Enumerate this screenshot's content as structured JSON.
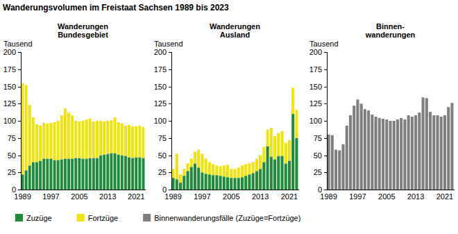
{
  "title": "Wanderungsvolumen im Freistaat Sachsen 1989 bis 2023",
  "chart_data": [
    {
      "type": "bar",
      "title": "Wanderungen\nBundesgebiet",
      "ylabel": "Tausend",
      "stacked": true,
      "grid": false,
      "legend": "bottom",
      "categories": [
        "1989",
        null,
        null,
        null,
        null,
        null,
        null,
        null,
        "1997",
        null,
        null,
        null,
        null,
        null,
        null,
        null,
        "2005",
        null,
        null,
        null,
        null,
        null,
        null,
        null,
        "2013",
        null,
        null,
        null,
        null,
        null,
        null,
        null,
        "2021",
        null,
        null
      ],
      "ylim": [
        0,
        200
      ],
      "yticks": [
        0,
        25,
        50,
        75,
        100,
        125,
        150,
        175,
        200
      ],
      "series": [
        {
          "name": "Zuzüge",
          "color": "#1e8c3a",
          "values": [
            22,
            28,
            35,
            40,
            40,
            42,
            45,
            45,
            45,
            43,
            43,
            44,
            45,
            45,
            45,
            46,
            46,
            45,
            45,
            46,
            46,
            46,
            50,
            51,
            52,
            53,
            53,
            51,
            50,
            49,
            47,
            46,
            47,
            47,
            46
          ]
        },
        {
          "name": "Fortzüge",
          "color": "#f2e30f",
          "values": [
            133,
            124,
            88,
            65,
            55,
            51,
            52,
            51,
            52,
            55,
            57,
            64,
            73,
            67,
            63,
            54,
            53,
            55,
            57,
            57,
            53,
            54,
            50,
            48,
            48,
            48,
            52,
            47,
            46,
            44,
            47,
            46,
            45,
            46,
            45
          ]
        }
      ]
    },
    {
      "type": "bar",
      "title": "Wanderungen\nAusland",
      "ylabel": "Tausend",
      "stacked": true,
      "grid": false,
      "categories": [
        "1989",
        null,
        null,
        null,
        null,
        null,
        null,
        null,
        "1997",
        null,
        null,
        null,
        null,
        null,
        null,
        null,
        "2005",
        null,
        null,
        null,
        null,
        null,
        null,
        null,
        "2013",
        null,
        null,
        null,
        null,
        null,
        null,
        null,
        "2021",
        null,
        null
      ],
      "ylim": [
        0,
        200
      ],
      "yticks": [
        0,
        25,
        50,
        75,
        100,
        125,
        150,
        175,
        200
      ],
      "series": [
        {
          "color": "#1e8c3a",
          "values": [
            17,
            15,
            10,
            20,
            27,
            33,
            38,
            32,
            25,
            23,
            22,
            21,
            21,
            20,
            19,
            18,
            17,
            17,
            17,
            18,
            20,
            22,
            24,
            27,
            30,
            40,
            63,
            48,
            44,
            49,
            49,
            38,
            42,
            110,
            75
          ]
        },
        {
          "color": "#f2e30f",
          "values": [
            13,
            37,
            12,
            10,
            11,
            12,
            17,
            26,
            27,
            22,
            18,
            16,
            14,
            14,
            16,
            18,
            13,
            13,
            15,
            17,
            17,
            16,
            16,
            18,
            20,
            22,
            24,
            42,
            34,
            33,
            36,
            30,
            30,
            38,
            41
          ]
        }
      ]
    },
    {
      "type": "bar",
      "title": "Binnen-\nwanderungen",
      "ylabel": "Tausend",
      "grid": false,
      "legend": "bottom",
      "categories": [
        "1989",
        null,
        null,
        null,
        null,
        null,
        null,
        null,
        "1997",
        null,
        null,
        null,
        null,
        null,
        null,
        null,
        "2005",
        null,
        null,
        null,
        null,
        null,
        null,
        null,
        "2013",
        null,
        null,
        null,
        null,
        null,
        null,
        null,
        "2021",
        null,
        null
      ],
      "ylim": [
        0,
        200
      ],
      "yticks": [
        0,
        25,
        50,
        75,
        100,
        125,
        150,
        175,
        200
      ],
      "series": [
        {
          "name": "Binnenwanderungsfälle (Zuzüge=Fortzüge)",
          "color": "#7f7f7f",
          "values": [
            80,
            79,
            58,
            57,
            66,
            93,
            108,
            122,
            131,
            125,
            117,
            115,
            109,
            106,
            104,
            103,
            102,
            100,
            100,
            102,
            104,
            102,
            108,
            106,
            108,
            112,
            134,
            133,
            113,
            108,
            108,
            106,
            108,
            120,
            126
          ]
        }
      ]
    }
  ]
}
